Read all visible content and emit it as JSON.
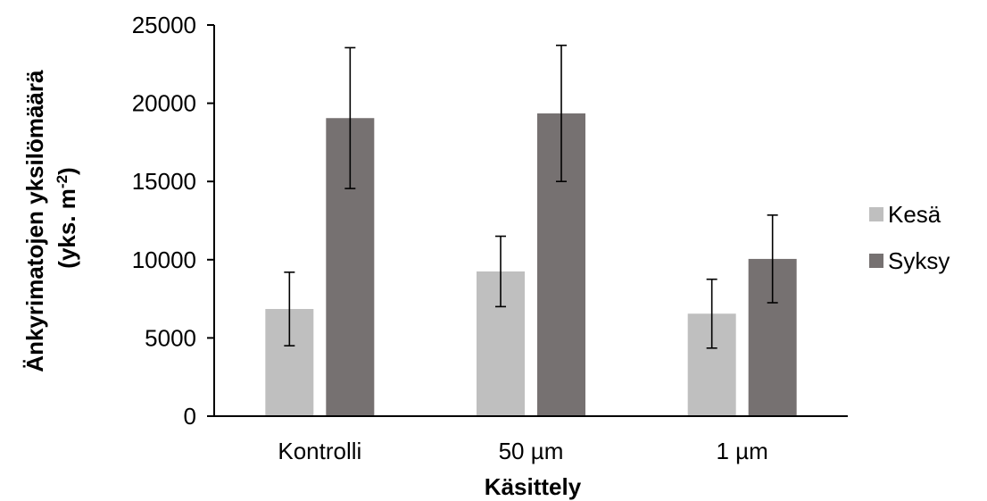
{
  "chart_data": {
    "type": "bar",
    "categories": [
      "Kontrolli",
      "50 µm",
      "1 µm"
    ],
    "series": [
      {
        "name": "Kesä",
        "values": [
          6850,
          9250,
          6550
        ],
        "error": [
          2350,
          2250,
          2200
        ],
        "color": "#BFBFBF"
      },
      {
        "name": "Syksy",
        "values": [
          19050,
          19350,
          10050
        ],
        "error": [
          4500,
          4350,
          2800
        ],
        "color": "#767171"
      }
    ],
    "xlabel": "Käsittely",
    "ylabel_line1": "Änkyrimatojen yksilömäärä",
    "ylabel_line2_prefix": "(yks. m",
    "ylabel_superscript": "-2",
    "ylabel_line2_suffix": ")",
    "ylim": [
      0,
      25000
    ],
    "yticks": [
      0,
      5000,
      10000,
      15000,
      20000,
      25000
    ],
    "grid": false,
    "legend_position": "right"
  }
}
